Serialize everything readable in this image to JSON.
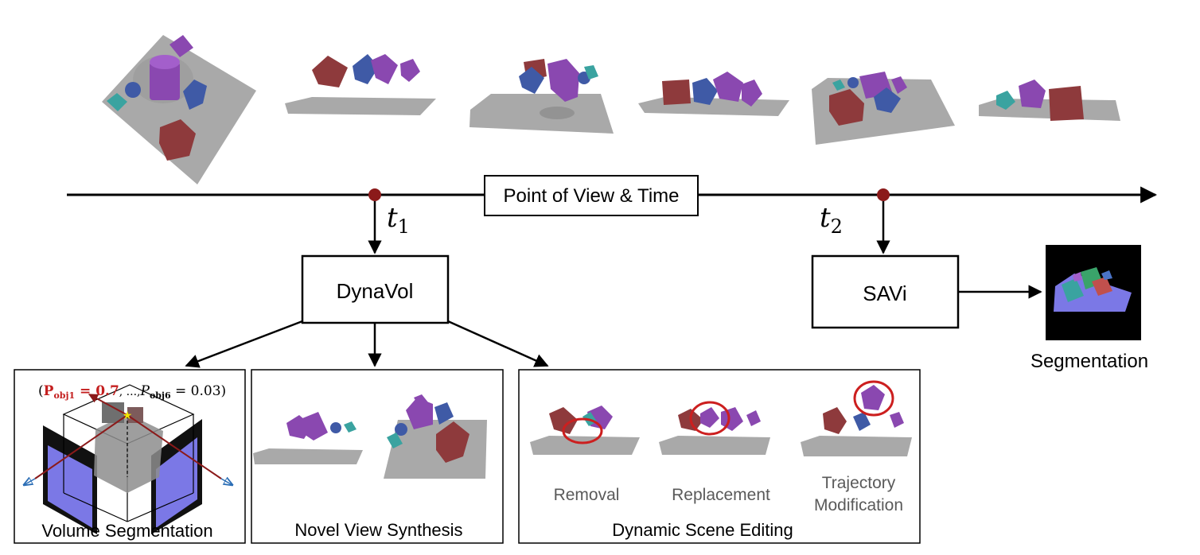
{
  "timeline": {
    "label": "Point of View & Time"
  },
  "times": [
    {
      "symbol": "t",
      "sub": "1"
    },
    {
      "symbol": "t",
      "sub": "2"
    }
  ],
  "nodes": {
    "dynavol": "DynaVol",
    "savi": "SAVi"
  },
  "outputs": {
    "segmentation": "Segmentation",
    "volume_segmentation": "Volume Segmentation",
    "novel_view_synthesis": "Novel View Synthesis",
    "dynamic_scene_editing": "Dynamic Scene Editing"
  },
  "probability": {
    "open": "(",
    "p1_symbol": "P",
    "p1_sub": "obj1",
    "p1_value": " = 0.7",
    "middle": ", ...,",
    "p6_symbol": "P",
    "p6_sub": "obj6",
    "p6_value": " = 0.03)"
  },
  "edits": {
    "removal": "Removal",
    "replacement": "Replacement",
    "trajectory_line1": "Trajectory",
    "trajectory_line2": "Modification"
  },
  "colors": {
    "red_cube": "#8e3a3c",
    "blue_cube": "#3f5aa6",
    "purple": "#8a48b0",
    "teal": "#3aa3a0",
    "plane": "#a9a9a9",
    "timeline_dot": "#8b1a1a",
    "highlight": "#cc1f1f",
    "seg_plane": "#7b78e6"
  }
}
